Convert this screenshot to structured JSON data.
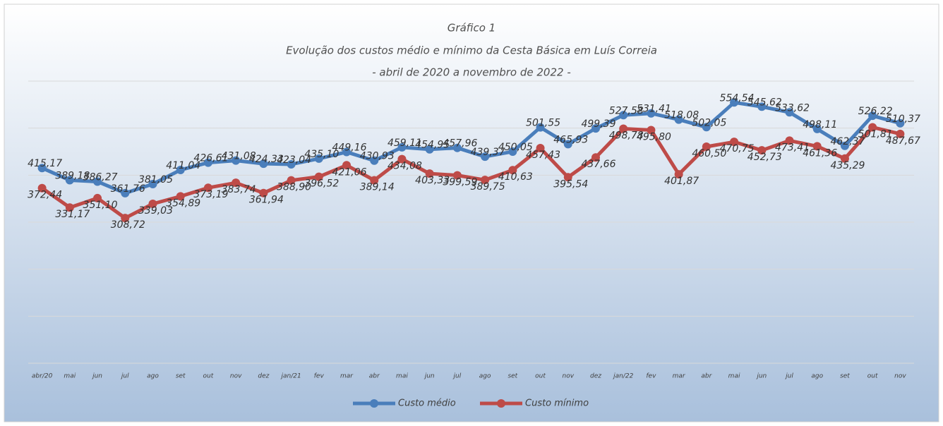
{
  "chart_data": {
    "type": "line",
    "title": "Gráfico 1",
    "subtitle": "Evolução dos custos médio e mínimo da Cesta Básica em Luís Correia",
    "subtitle2": "- abril de 2020 a novembro de 2022 -",
    "categories": [
      "abr/20",
      "mai",
      "jun",
      "jul",
      "ago",
      "set",
      "out",
      "nov",
      "dez",
      "jan/21",
      "fev",
      "mar",
      "abr",
      "mai",
      "jun",
      "jul",
      "ago",
      "set",
      "out",
      "nov",
      "dez",
      "jan/22",
      "fev",
      "mar",
      "abr",
      "mai",
      "jun",
      "jul",
      "ago",
      "set",
      "out",
      "nov"
    ],
    "series": [
      {
        "name": "Custo médio",
        "color": "#4a7ebb",
        "values": [
          415.17,
          389.18,
          386.27,
          361.76,
          381.05,
          411.04,
          426.61,
          431.08,
          424.33,
          423.04,
          435.1,
          449.16,
          430.93,
          459.11,
          454.95,
          457.96,
          439.37,
          450.05,
          501.55,
          465.93,
          499.39,
          527.58,
          531.41,
          518.08,
          502.05,
          554.54,
          545.62,
          533.62,
          498.11,
          462.37,
          526.22,
          510.37
        ],
        "value_labels": [
          "415,17",
          "389,18",
          "386,27",
          "361,76",
          "381,05",
          "411,04",
          "426,61",
          "431,08",
          "424,33",
          "423,04",
          "435,10",
          "449,16",
          "430,93",
          "459,11",
          "454,95",
          "457,96",
          "439,37",
          "450,05",
          "501,55",
          "465,93",
          "499,39",
          "527,58",
          "531,41",
          "518,08",
          "502,05",
          "554,54",
          "545,62",
          "533,62",
          "498,11",
          "462,37",
          "526,22",
          "510,37"
        ]
      },
      {
        "name": "Custo mínimo",
        "color": "#be4b48",
        "values": [
          372.44,
          331.17,
          351.1,
          308.72,
          339.03,
          354.89,
          373.19,
          383.74,
          361.94,
          388.9,
          396.52,
          421.06,
          389.14,
          434.08,
          403.33,
          399.59,
          389.75,
          410.63,
          457.43,
          395.54,
          437.66,
          498.78,
          495.8,
          401.87,
          460.5,
          470.75,
          452.73,
          473.41,
          461.36,
          435.29,
          501.81,
          487.67
        ],
        "value_labels": [
          "372,44",
          "331,17",
          "351,10",
          "308,72",
          "339,03",
          "354,89",
          "373,19",
          "383,74",
          "361,94",
          "388,90",
          "396,52",
          "421,06",
          "389,14",
          "434,08",
          "403,33",
          "399,59",
          "389,75",
          "410,63",
          "457,43",
          "395,54",
          "437,66",
          "498,78",
          "495,80",
          "401,87",
          "460,50",
          "470,75",
          "452,73",
          "473,41",
          "461,36",
          "435,29",
          "501,81",
          "487,67"
        ]
      }
    ],
    "ylim": [
      0,
      600
    ],
    "yticks": [
      0,
      100,
      200,
      300,
      400,
      500,
      600
    ],
    "grid": true,
    "legend": "bottom"
  }
}
